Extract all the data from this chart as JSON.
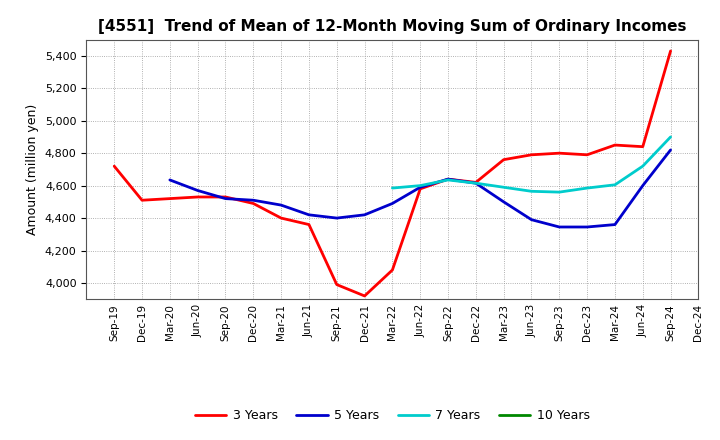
{
  "title": "[4551]  Trend of Mean of 12-Month Moving Sum of Ordinary Incomes",
  "ylabel": "Amount (million yen)",
  "background_color": "#ffffff",
  "plot_bg_color": "#ffffff",
  "grid_color": "#999999",
  "x_labels": [
    "Sep-19",
    "Dec-19",
    "Mar-20",
    "Jun-20",
    "Sep-20",
    "Dec-20",
    "Mar-21",
    "Jun-21",
    "Sep-21",
    "Dec-21",
    "Mar-22",
    "Jun-22",
    "Sep-22",
    "Dec-22",
    "Mar-23",
    "Jun-23",
    "Sep-23",
    "Dec-23",
    "Mar-24",
    "Jun-24",
    "Sep-24",
    "Dec-24"
  ],
  "ylim": [
    3900,
    5500
  ],
  "yticks": [
    4000,
    4200,
    4400,
    4600,
    4800,
    5000,
    5200,
    5400
  ],
  "y_3yr": [
    4720,
    4510,
    4520,
    4530,
    4530,
    4490,
    4400,
    4360,
    3990,
    3920,
    4080,
    4580,
    4640,
    4620,
    4760,
    4790,
    4800,
    4790,
    4850,
    4840,
    5430,
    null
  ],
  "y_5yr": [
    null,
    null,
    4635,
    4570,
    4520,
    4510,
    4480,
    4420,
    4400,
    4420,
    4490,
    4590,
    4640,
    4615,
    4500,
    4390,
    4345,
    4345,
    4360,
    4600,
    4820,
    null
  ],
  "y_7yr": [
    null,
    null,
    null,
    null,
    null,
    null,
    null,
    null,
    null,
    null,
    4585,
    4600,
    4635,
    4615,
    4590,
    4565,
    4560,
    4585,
    4605,
    4720,
    4900,
    null
  ],
  "y_10yr": [
    null,
    null,
    null,
    null,
    null,
    null,
    null,
    null,
    null,
    null,
    null,
    null,
    null,
    null,
    null,
    null,
    null,
    null,
    null,
    null,
    null,
    null
  ],
  "color_3yr": "#ff0000",
  "color_5yr": "#0000cc",
  "color_7yr": "#00cccc",
  "color_10yr": "#008800",
  "linewidth": 2.0,
  "title_fontsize": 11,
  "ylabel_fontsize": 9,
  "tick_fontsize": 8,
  "xtick_fontsize": 7.5,
  "legend_fontsize": 9
}
